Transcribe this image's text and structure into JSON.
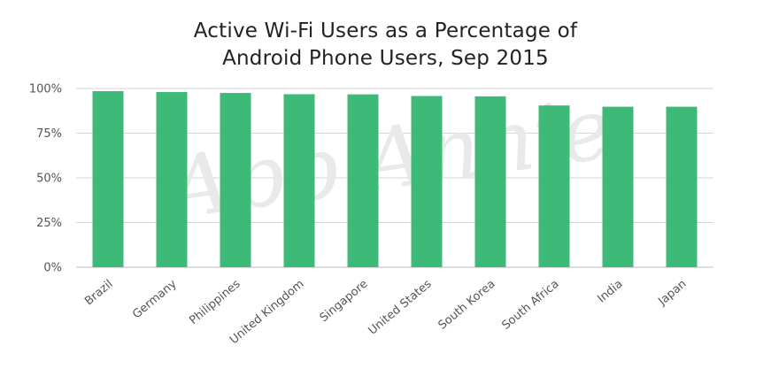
{
  "chart_data": {
    "type": "bar",
    "title_lines": [
      "Active Wi-Fi Users as a Percentage of",
      "Android Phone Users, Sep 2015"
    ],
    "categories": [
      "Brazil",
      "Germany",
      "Philippines",
      "United Kingdom",
      "Singapore",
      "United States",
      "South Korea",
      "South Africa",
      "India",
      "Japan"
    ],
    "values": [
      98.5,
      98,
      97.5,
      96.8,
      96.7,
      95.8,
      95.6,
      90.5,
      89.8,
      89.8
    ],
    "yticks": [
      "0%",
      "25%",
      "50%",
      "75%",
      "100%"
    ],
    "ylim": [
      0,
      100
    ],
    "grid": true,
    "watermark": "App Annie",
    "colors": {
      "bar": "#3dba78",
      "grid": "#d6d6d6",
      "axis": "#bdbdbd"
    }
  }
}
